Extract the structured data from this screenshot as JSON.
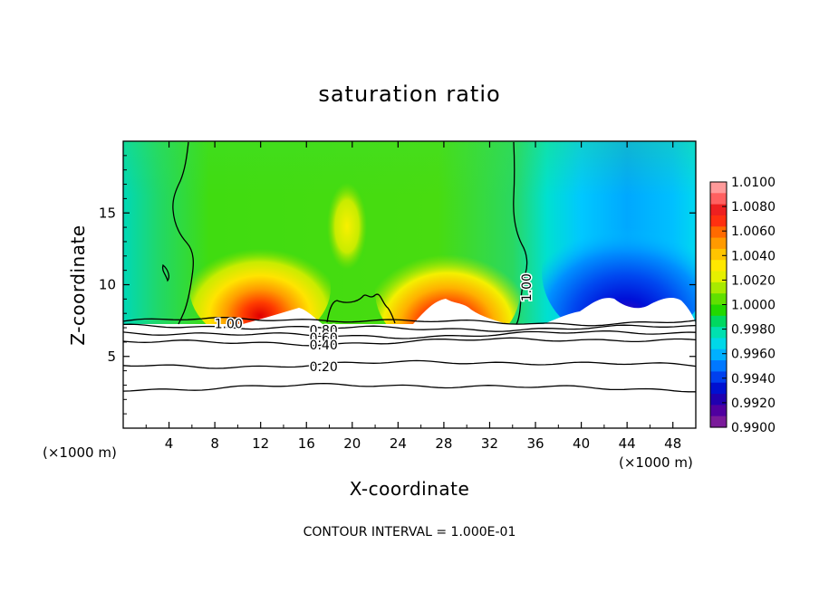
{
  "chart_data": {
    "type": "heatmap",
    "title": "saturation ratio",
    "xlabel": "X-coordinate",
    "ylabel": "Z-coordinate",
    "x_unit_left": "(×1000 m)",
    "x_unit_right": "(×1000 m)",
    "xlim": [
      0,
      50
    ],
    "ylim": [
      0,
      20
    ],
    "x_ticks": [
      4,
      8,
      12,
      16,
      20,
      24,
      28,
      32,
      36,
      40,
      44,
      48
    ],
    "y_ticks": [
      5,
      10,
      15
    ],
    "colorbar": {
      "min": 0.99,
      "max": 1.01,
      "ticks": [
        "1.0100",
        "1.0080",
        "1.0060",
        "1.0040",
        "1.0020",
        "1.0000",
        "0.9980",
        "0.9960",
        "0.9940",
        "0.9920",
        "0.9900"
      ],
      "colors": [
        "#ff9a9a",
        "#ff6060",
        "#ee2020",
        "#ff3010",
        "#ff6a00",
        "#ff9a00",
        "#ffc400",
        "#ffe800",
        "#e6f000",
        "#a8ea00",
        "#60e000",
        "#22d800",
        "#00d860",
        "#00e0b0",
        "#00d8e8",
        "#00b0ff",
        "#0078ff",
        "#0040ee",
        "#0010d0",
        "#2000b0",
        "#5000a0",
        "#7a1a9a"
      ]
    },
    "contours": [
      {
        "label": "1.00",
        "z": [
          7.3,
          7.6
        ]
      },
      {
        "label": "0.80",
        "z": [
          6.9,
          7.1
        ]
      },
      {
        "label": "0.60",
        "z": [
          6.4,
          6.7
        ]
      },
      {
        "label": "0.40",
        "z": [
          5.9,
          6.2
        ]
      },
      {
        "label": "0.20",
        "z": [
          4.3,
          4.6
        ]
      },
      {
        "label": "",
        "z": [
          2.7,
          3.0
        ]
      }
    ],
    "contour_label_marks": [
      {
        "text": "1.00",
        "x": 9.2,
        "z": 7.3
      },
      {
        "text": "0.80",
        "x": 17.5,
        "z": 6.85
      },
      {
        "text": "0.60",
        "x": 17.5,
        "z": 6.3
      },
      {
        "text": "0.40",
        "x": 17.5,
        "z": 5.8
      },
      {
        "text": "0.20",
        "x": 17.5,
        "z": 4.3
      },
      {
        "text": "1.00",
        "x": 35.2,
        "z": 9.8,
        "vertical": true
      }
    ],
    "footnote": "CONTOUR INTERVAL = 1.000E-01"
  }
}
